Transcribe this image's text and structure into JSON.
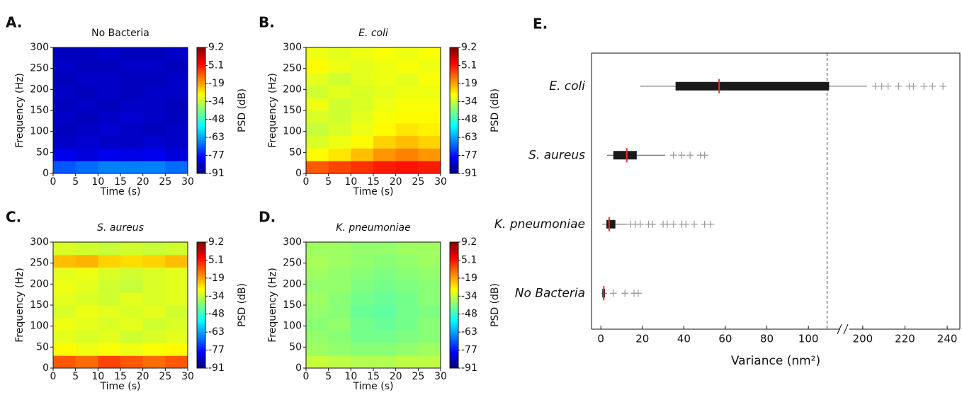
{
  "chart_data": [
    {
      "type": "heatmap",
      "panel": "A.",
      "title": "No Bacteria",
      "xlabel": "Time (s)",
      "ylabel": "Frequency (Hz)",
      "colorbar_label": "PSD (dB)",
      "xlim": [
        0,
        30
      ],
      "xticks": [
        0,
        5,
        10,
        15,
        20,
        25,
        30
      ],
      "ylim": [
        0,
        300
      ],
      "yticks": [
        0,
        50,
        100,
        150,
        200,
        250,
        300
      ],
      "colormap": "jet",
      "clim": [
        -91,
        9.2
      ],
      "colorbar_ticks": [
        9.2,
        5.1,
        -19,
        -34,
        -48,
        -63,
        -77,
        -91
      ],
      "z": [
        [
          -70,
          -68,
          -66,
          -66,
          -66,
          -68
        ],
        [
          -80,
          -82,
          -80,
          -81,
          -80,
          -82
        ],
        [
          -84,
          -83,
          -84,
          -84,
          -83,
          -84
        ],
        [
          -85,
          -84,
          -83,
          -84,
          -85,
          -84
        ],
        [
          -84,
          -85,
          -84,
          -83,
          -84,
          -85
        ],
        [
          -85,
          -84,
          -85,
          -84,
          -84,
          -85
        ],
        [
          -84,
          -85,
          -84,
          -85,
          -84,
          -84
        ],
        [
          -85,
          -84,
          -84,
          -85,
          -85,
          -84
        ],
        [
          -84,
          -85,
          -85,
          -84,
          -84,
          -85
        ],
        [
          -85,
          -85,
          -84,
          -85,
          -85,
          -84
        ]
      ]
    },
    {
      "type": "heatmap",
      "panel": "B.",
      "title": "E. coli",
      "xlabel": "Time (s)",
      "ylabel": "Frequency (Hz)",
      "colorbar_label": "PSD (dB)",
      "xlim": [
        0,
        30
      ],
      "xticks": [
        0,
        5,
        10,
        15,
        20,
        25,
        30
      ],
      "ylim": [
        0,
        300
      ],
      "yticks": [
        0,
        50,
        100,
        150,
        200,
        250,
        300
      ],
      "colormap": "jet",
      "clim": [
        -91,
        9.2
      ],
      "colorbar_ticks": [
        9.2,
        5.1,
        -19,
        -34,
        -48,
        -63,
        -77,
        -91
      ],
      "z": [
        [
          -12,
          -10,
          -8,
          -6,
          -5,
          -6
        ],
        [
          -28,
          -26,
          -22,
          -18,
          -16,
          -18
        ],
        [
          -32,
          -30,
          -28,
          -24,
          -22,
          -24
        ],
        [
          -34,
          -32,
          -30,
          -28,
          -26,
          -27
        ],
        [
          -32,
          -33,
          -31,
          -29,
          -28,
          -28
        ],
        [
          -30,
          -33,
          -32,
          -30,
          -29,
          -29
        ],
        [
          -33,
          -31,
          -32,
          -31,
          -30,
          -30
        ],
        [
          -31,
          -33,
          -31,
          -30,
          -31,
          -29
        ],
        [
          -28,
          -30,
          -31,
          -30,
          -29,
          -30
        ],
        [
          -30,
          -31,
          -30,
          -29,
          -30,
          -29
        ]
      ]
    },
    {
      "type": "heatmap",
      "panel": "C.",
      "title": "S. aureus",
      "xlabel": "Time (s)",
      "ylabel": "Frequency (Hz)",
      "colorbar_label": "PSD (dB)",
      "xlim": [
        0,
        30
      ],
      "xticks": [
        0,
        5,
        10,
        15,
        20,
        25,
        30
      ],
      "ylim": [
        0,
        300
      ],
      "yticks": [
        0,
        50,
        100,
        150,
        200,
        250,
        300
      ],
      "colormap": "jet",
      "clim": [
        -91,
        9.2
      ],
      "colorbar_ticks": [
        9.2,
        5.1,
        -19,
        -34,
        -48,
        -63,
        -77,
        -91
      ],
      "z": [
        [
          -12,
          -14,
          -10,
          -12,
          -14,
          -12
        ],
        [
          -28,
          -30,
          -29,
          -30,
          -29,
          -28
        ],
        [
          -31,
          -32,
          -31,
          -33,
          -32,
          -31
        ],
        [
          -30,
          -31,
          -32,
          -31,
          -33,
          -32
        ],
        [
          -32,
          -30,
          -31,
          -32,
          -31,
          -33
        ],
        [
          -31,
          -32,
          -33,
          -31,
          -32,
          -31
        ],
        [
          -30,
          -31,
          -33,
          -34,
          -32,
          -31
        ],
        [
          -31,
          -30,
          -32,
          -33,
          -32,
          -31
        ],
        [
          -22,
          -21,
          -24,
          -25,
          -24,
          -22
        ],
        [
          -32,
          -33,
          -34,
          -33,
          -34,
          -33
        ]
      ]
    },
    {
      "type": "heatmap",
      "panel": "D.",
      "title": "K. pneumoniae",
      "xlabel": "Time (s)",
      "ylabel": "Frequency (Hz)",
      "colorbar_label": "PSD (dB)",
      "xlim": [
        0,
        30
      ],
      "xticks": [
        0,
        5,
        10,
        15,
        20,
        25,
        30
      ],
      "ylim": [
        0,
        300
      ],
      "yticks": [
        0,
        50,
        100,
        150,
        200,
        250,
        300
      ],
      "colormap": "jet",
      "clim": [
        -91,
        9.2
      ],
      "colorbar_ticks": [
        9.2,
        5.1,
        -19,
        -34,
        -48,
        -63,
        -77,
        -91
      ],
      "z": [
        [
          -34,
          -35,
          -36,
          -36,
          -35,
          -35
        ],
        [
          -38,
          -39,
          -40,
          -40,
          -39,
          -38
        ],
        [
          -39,
          -40,
          -42,
          -42,
          -41,
          -40
        ],
        [
          -40,
          -39,
          -42,
          -43,
          -42,
          -40
        ],
        [
          -39,
          -40,
          -43,
          -44,
          -42,
          -41
        ],
        [
          -38,
          -40,
          -42,
          -43,
          -42,
          -40
        ],
        [
          -39,
          -39,
          -41,
          -42,
          -41,
          -40
        ],
        [
          -38,
          -39,
          -40,
          -41,
          -40,
          -39
        ],
        [
          -37,
          -38,
          -39,
          -40,
          -39,
          -38
        ],
        [
          -38,
          -38,
          -39,
          -39,
          -38,
          -38
        ]
      ]
    },
    {
      "type": "box",
      "panel": "E.",
      "xlabel": "Variance (nm²)",
      "categories": [
        "E. coli",
        "S. aureus",
        "K. pneumoniae",
        "No Bacteria"
      ],
      "whisker_low": [
        19,
        3,
        0.7,
        0.3
      ],
      "q1": [
        36,
        6,
        2.7,
        0.7
      ],
      "median": [
        57,
        12.5,
        4,
        1.4
      ],
      "q3": [
        110,
        17.3,
        7,
        2
      ],
      "whisker_high": [
        202,
        31,
        12.5,
        3
      ],
      "outliers": [
        [
          206,
          209,
          212,
          217,
          222,
          224,
          229,
          233,
          238
        ],
        [
          35,
          39,
          43,
          48,
          50
        ],
        [
          14.3,
          16.7,
          19,
          23,
          25,
          30,
          32,
          35,
          39,
          41,
          45,
          50,
          53
        ],
        [
          6,
          11.6,
          16,
          18
        ]
      ],
      "box_color": "#1a1a1a",
      "median_color": "#e8302a",
      "outlier_color": "#9a9a9a",
      "xlim": [
        -4.5,
        116
      ],
      "xticks": [
        0,
        20,
        40,
        60,
        80,
        100
      ],
      "xlim2": [
        193,
        246
      ],
      "xticks2": [
        200,
        220,
        240
      ],
      "vline": 109
    }
  ]
}
